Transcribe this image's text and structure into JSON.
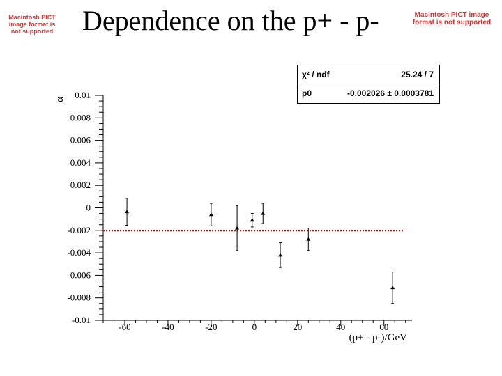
{
  "slide": {
    "title": "Dependence on the p+ - p-",
    "pict_notice_left": "Macintosh PICT image format is not supported",
    "pict_notice_right": "Macintosh PICT image format is not supported"
  },
  "fit_box": {
    "rows": [
      {
        "name": "χ² / ndf",
        "value": "25.24 / 7"
      },
      {
        "name": "p0",
        "value": "-0.002026 ± 0.0003781"
      }
    ]
  },
  "chart_data": {
    "type": "scatter",
    "title": "",
    "xlabel": "(p+ - p-)/GeV",
    "ylabel": "α",
    "xlim": [
      -70,
      73
    ],
    "ylim": [
      -0.01,
      0.01
    ],
    "x_ticks": [
      -60,
      -40,
      -20,
      0,
      20,
      40,
      60
    ],
    "x_tick_labels": [
      "-60",
      "-40",
      "-20",
      "0",
      "20",
      "40",
      "60"
    ],
    "y_ticks": [
      0.01,
      0.008,
      0.006,
      0.004,
      0.002,
      0,
      -0.002,
      -0.004,
      -0.006,
      -0.008,
      -0.01
    ],
    "y_tick_labels": [
      "0.01",
      "0.008",
      "0.006",
      "0.004",
      "0.002",
      "0",
      "-0.002",
      "-0.004",
      "-0.006",
      "-0.008",
      "-0.01"
    ],
    "grid": false,
    "series": [
      {
        "points": [
          {
            "x": -59,
            "y": -0.00035,
            "err": 0.0012
          },
          {
            "x": -20,
            "y": -0.0006,
            "err": 0.001
          },
          {
            "x": -8,
            "y": -0.0018,
            "err": 0.002
          },
          {
            "x": -1,
            "y": -0.0011,
            "err": 0.0006
          },
          {
            "x": 4,
            "y": -0.0005,
            "err": 0.0009
          },
          {
            "x": 12,
            "y": -0.0042,
            "err": 0.0011
          },
          {
            "x": 25,
            "y": -0.0028,
            "err": 0.001
          },
          {
            "x": 64,
            "y": -0.0071,
            "err": 0.0014
          }
        ]
      }
    ],
    "fit_line": {
      "y": -0.002026,
      "color": "#c00000",
      "style": "dotted"
    }
  }
}
